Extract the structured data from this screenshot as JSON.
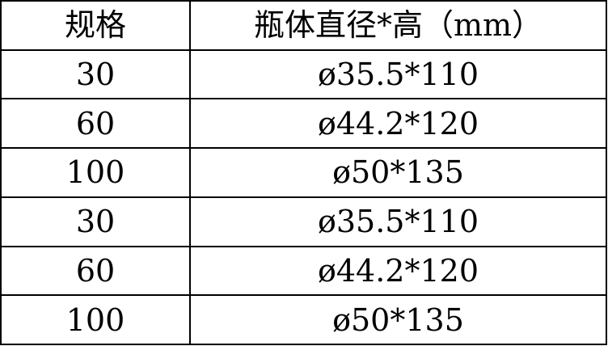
{
  "table": {
    "headers": [
      "规格",
      "瓶体直径*高（mm）"
    ],
    "rows": [
      [
        "30",
        "ø35.5*110"
      ],
      [
        "60",
        "ø44.2*120"
      ],
      [
        "100",
        "ø50*135"
      ],
      [
        "30",
        "ø35.5*110"
      ],
      [
        "60",
        "ø44.2*120"
      ],
      [
        "100",
        "ø50*135"
      ]
    ]
  }
}
